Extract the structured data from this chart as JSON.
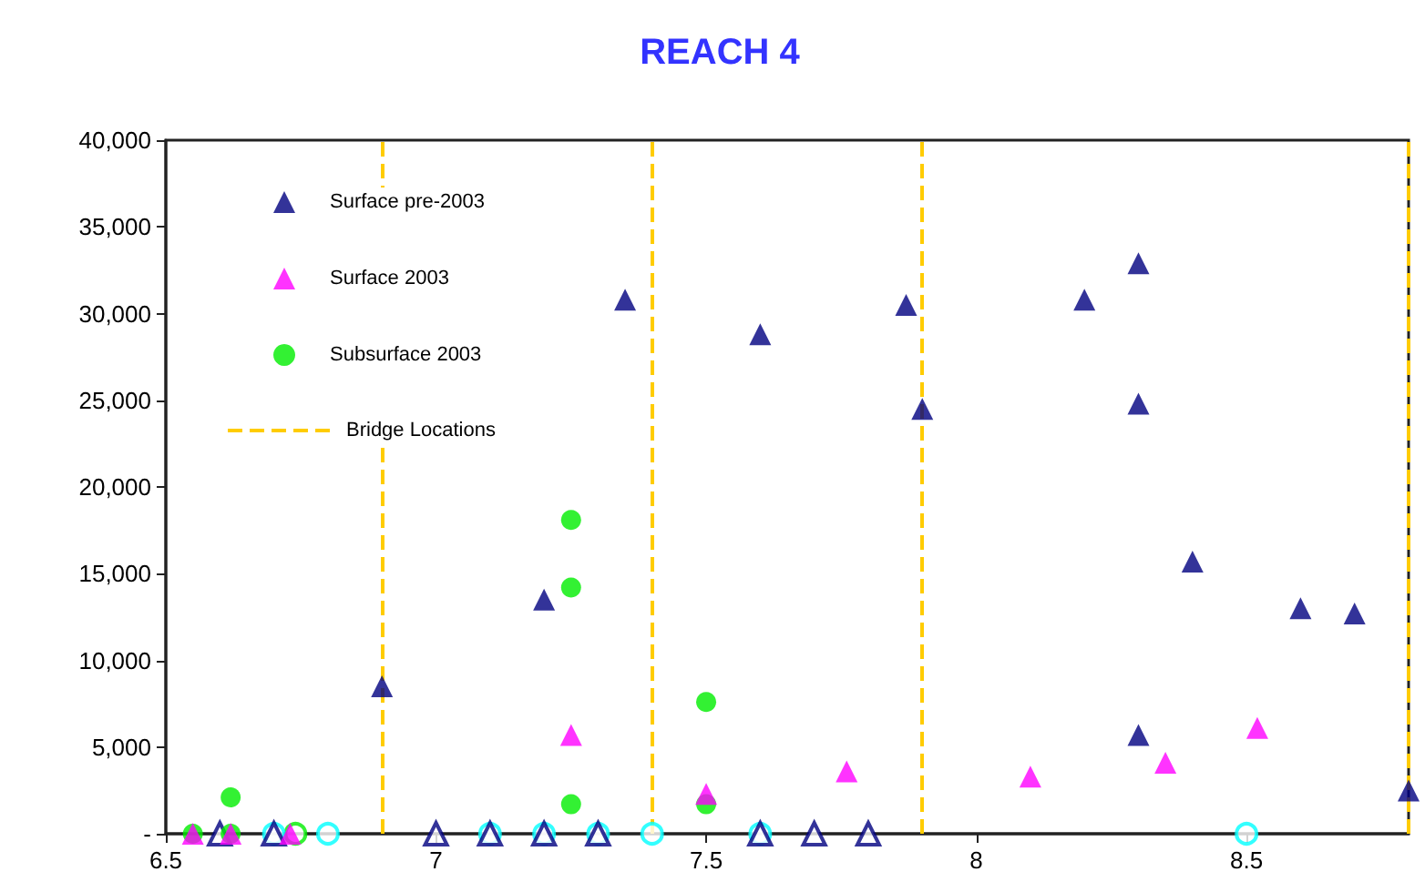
{
  "chart_data": {
    "type": "scatter",
    "title": "REACH 4",
    "xlim": [
      6.5,
      8.8
    ],
    "xticks": [
      6.5,
      7,
      7.5,
      8,
      8.5
    ],
    "ylim": [
      0,
      40000
    ],
    "yticks": [
      {
        "value": 0,
        "label": "-"
      },
      {
        "value": 5000,
        "label": "5,000"
      },
      {
        "value": 10000,
        "label": "10,000"
      },
      {
        "value": 15000,
        "label": "15,000"
      },
      {
        "value": 20000,
        "label": "20,000"
      },
      {
        "value": 25000,
        "label": "25,000"
      },
      {
        "value": 30000,
        "label": "30,000"
      },
      {
        "value": 35000,
        "label": "35,000"
      },
      {
        "value": 40000,
        "label": "40,000"
      }
    ],
    "grid": false,
    "legend": "top left",
    "series": [
      {
        "name": "Surface pre-2003",
        "color": "#000080",
        "marker": "triangle",
        "x": [
          6.9,
          7.2,
          7.35,
          7.6,
          7.87,
          7.9,
          8.2,
          8.3,
          8.3,
          8.3,
          8.4,
          8.6,
          8.7,
          8.8
        ],
        "values": [
          8500,
          13500,
          30800,
          28800,
          30500,
          24500,
          30800,
          32900,
          24800,
          5700,
          15700,
          13000,
          12700,
          2500
        ]
      },
      {
        "name": "Surface 2003",
        "color": "#ff00ff",
        "marker": "triangle",
        "x": [
          6.55,
          6.62,
          6.73,
          7.25,
          7.5,
          7.76,
          8.1,
          8.35,
          8.52
        ],
        "values": [
          0,
          0,
          0,
          5700,
          2300,
          3600,
          3300,
          4100,
          6100
        ]
      },
      {
        "name": "Subsurface 2003",
        "color": "#00ee00",
        "marker": "circle",
        "x": [
          6.55,
          6.62,
          6.62,
          7.25,
          7.25,
          7.25,
          7.5,
          7.5
        ],
        "values": [
          0,
          0,
          2100,
          18100,
          14200,
          1700,
          7600,
          1700
        ]
      },
      {
        "color": "#000080",
        "marker": "triangle",
        "x": [
          6.6,
          6.7,
          7.0,
          7.1,
          7.2,
          7.3,
          7.6,
          7.7,
          7.8
        ],
        "values": [
          0,
          0,
          0,
          0,
          0,
          0,
          0,
          0,
          0
        ]
      },
      {
        "color": "#00ffff",
        "marker": "circle",
        "x": [
          6.7,
          6.8,
          7.1,
          7.2,
          7.3,
          7.4,
          7.6,
          8.5
        ],
        "values": [
          0,
          0,
          0,
          0,
          0,
          0,
          0,
          0
        ]
      },
      {
        "color": "#00ee00",
        "marker": "circle",
        "x": [
          6.74
        ],
        "values": [
          0
        ]
      }
    ],
    "ref_lines": [
      {
        "axis": "x",
        "value": 6.9,
        "label": "Bridge Locations",
        "color": "#ffcc00",
        "line_style": "dashed"
      },
      {
        "axis": "x",
        "value": 7.4,
        "color": "#ffcc00",
        "line_style": "dashed"
      },
      {
        "axis": "x",
        "value": 7.9,
        "color": "#ffcc00",
        "line_style": "dashed"
      },
      {
        "axis": "x",
        "value": 8.8,
        "color": "#ffcc00",
        "line_style": "dashed"
      }
    ]
  }
}
